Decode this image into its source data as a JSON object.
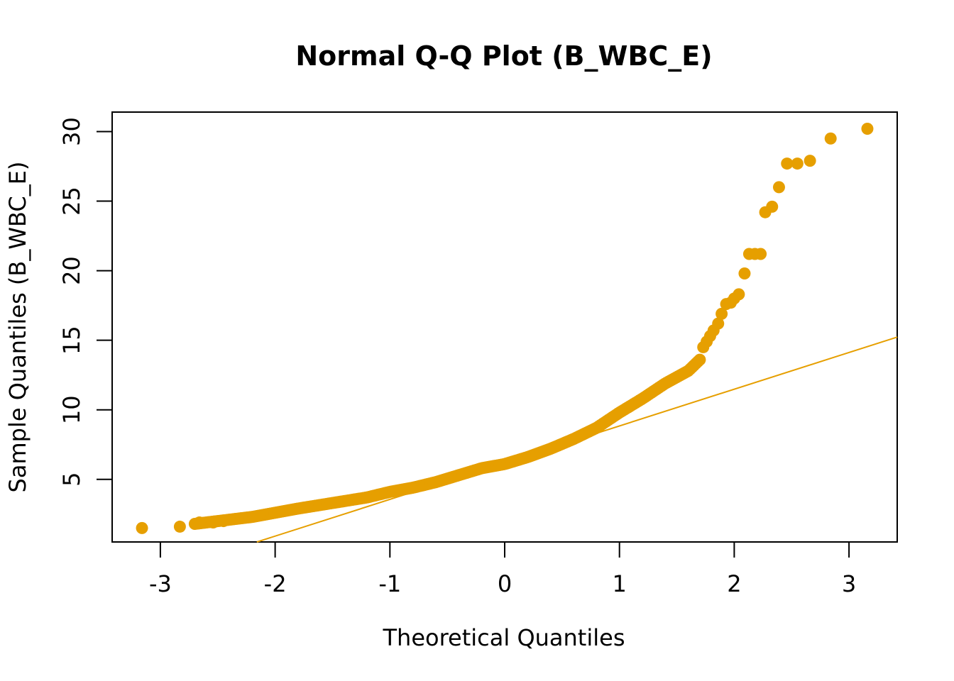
{
  "chart_data": {
    "type": "scatter",
    "title": "Normal Q-Q Plot (B_WBC_E)",
    "xlabel": "Theoretical Quantiles",
    "ylabel": "Sample Quantiles (B_WBC_E)",
    "xlim": [
      -3.42,
      3.42
    ],
    "ylim": [
      0.5,
      31.4
    ],
    "xticks": [
      -3,
      -2,
      -1,
      0,
      1,
      2,
      3
    ],
    "yticks": [
      5,
      10,
      15,
      20,
      25,
      30
    ],
    "grid": false,
    "color": "#E69F00",
    "reference_line": {
      "intercept": 6.2,
      "slope": 2.64
    },
    "curve_points": [
      [
        -2.7,
        1.8
      ],
      [
        -2.5,
        2.0
      ],
      [
        -2.2,
        2.3
      ],
      [
        -2.0,
        2.6
      ],
      [
        -1.8,
        2.9
      ],
      [
        -1.5,
        3.3
      ],
      [
        -1.2,
        3.7
      ],
      [
        -1.0,
        4.1
      ],
      [
        -0.8,
        4.4
      ],
      [
        -0.6,
        4.8
      ],
      [
        -0.4,
        5.3
      ],
      [
        -0.2,
        5.8
      ],
      [
        0.0,
        6.1
      ],
      [
        0.2,
        6.6
      ],
      [
        0.4,
        7.2
      ],
      [
        0.6,
        7.9
      ],
      [
        0.8,
        8.7
      ],
      [
        1.0,
        9.8
      ],
      [
        1.2,
        10.8
      ],
      [
        1.4,
        11.9
      ],
      [
        1.6,
        12.8
      ],
      [
        1.7,
        13.6
      ]
    ],
    "points": [
      [
        -3.16,
        1.5
      ],
      [
        -2.83,
        1.6
      ],
      [
        -2.66,
        1.9
      ],
      [
        -2.54,
        1.9
      ],
      [
        -2.45,
        2.0
      ],
      [
        1.73,
        14.5
      ],
      [
        1.76,
        14.9
      ],
      [
        1.79,
        15.3
      ],
      [
        1.82,
        15.7
      ],
      [
        1.86,
        16.2
      ],
      [
        1.89,
        16.9
      ],
      [
        1.93,
        17.6
      ],
      [
        1.97,
        17.7
      ],
      [
        2.0,
        18.0
      ],
      [
        2.04,
        18.3
      ],
      [
        2.09,
        19.8
      ],
      [
        2.13,
        21.2
      ],
      [
        2.18,
        21.2
      ],
      [
        2.23,
        21.2
      ],
      [
        2.27,
        24.2
      ],
      [
        2.33,
        24.6
      ],
      [
        2.39,
        26.0
      ],
      [
        2.46,
        27.7
      ],
      [
        2.55,
        27.7
      ],
      [
        2.66,
        27.9
      ],
      [
        2.84,
        29.5
      ],
      [
        3.16,
        30.2
      ]
    ]
  }
}
